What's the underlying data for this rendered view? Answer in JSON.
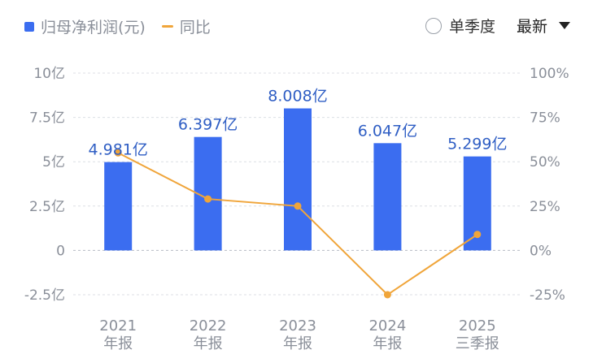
{
  "legend": {
    "bar_label": "归母净利润(元)",
    "line_label": "同比"
  },
  "controls": {
    "period_option": "单季度",
    "dropdown_value": "最新"
  },
  "colors": {
    "bar": "#3b6df0",
    "line": "#f0a53a",
    "bar_label": "#2f5ec4",
    "axis_text": "#8a8f99"
  },
  "chart_data": {
    "type": "bar",
    "categories": [
      [
        "2021",
        "年报"
      ],
      [
        "2022",
        "年报"
      ],
      [
        "2023",
        "年报"
      ],
      [
        "2024",
        "年报"
      ],
      [
        "2025",
        "三季报"
      ]
    ],
    "series": [
      {
        "name": "归母净利润(元)",
        "type": "bar",
        "axis": "left",
        "values": [
          4.981,
          6.397,
          8.008,
          6.047,
          5.299
        ],
        "labels": [
          "4.981亿",
          "6.397亿",
          "8.008亿",
          "6.047亿",
          "5.299亿"
        ]
      },
      {
        "name": "同比",
        "type": "line",
        "axis": "right",
        "values": [
          55,
          29,
          25,
          -25,
          9
        ]
      }
    ],
    "y_left": {
      "ticks": [
        10,
        7.5,
        5,
        2.5,
        0,
        -2.5
      ],
      "tick_labels": [
        "10亿",
        "7.5亿",
        "5亿",
        "2.5亿",
        "0",
        "-2.5亿"
      ],
      "ylim": [
        -2.5,
        10
      ]
    },
    "y_right": {
      "ticks": [
        100,
        75,
        50,
        25,
        0,
        -25
      ],
      "tick_labels": [
        "100%",
        "75%",
        "50%",
        "25%",
        "0%",
        "-25%"
      ],
      "ylim": [
        -25,
        100
      ]
    },
    "grid": true
  }
}
